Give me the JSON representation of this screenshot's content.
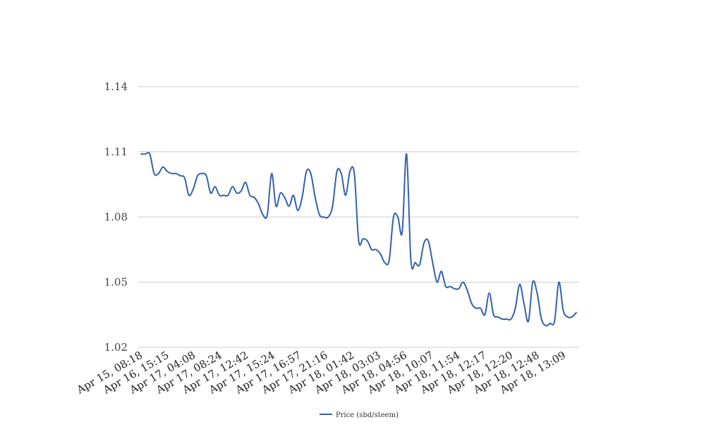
{
  "chart_data": {
    "type": "line",
    "title": "",
    "xlabel": "",
    "ylabel": "",
    "ylim": [
      1.02,
      1.14
    ],
    "yticks": [
      "1.02",
      "1.05",
      "1.08",
      "1.11",
      "1.14"
    ],
    "grid": true,
    "legend_position": "bottom-center",
    "x_tick_labels": [
      "Apr 15, 08:18",
      "Apr 16, 15:15",
      "Apr 17, 04:08",
      "Apr 17, 08:24",
      "Apr 17, 12:42",
      "Apr 17, 15:24",
      "Apr 17, 16:57",
      "Apr 17, 21:16",
      "Apr 18, 01:42",
      "Apr 18, 03:03",
      "Apr 18, 04:56",
      "Apr 18, 10:07",
      "Apr 18, 11:54",
      "Apr 18, 12:17",
      "Apr 18, 12:20",
      "Apr 18, 12:48",
      "Apr 18, 13:09"
    ],
    "series": [
      {
        "name": "Price (sbd/steem)",
        "color": "#3461ab",
        "values": [
          1.109,
          1.109,
          1.109,
          1.1,
          1.1,
          1.103,
          1.101,
          1.1,
          1.1,
          1.099,
          1.098,
          1.09,
          1.093,
          1.099,
          1.1,
          1.099,
          1.091,
          1.094,
          1.09,
          1.09,
          1.09,
          1.094,
          1.091,
          1.092,
          1.096,
          1.09,
          1.089,
          1.086,
          1.081,
          1.081,
          1.1,
          1.085,
          1.091,
          1.089,
          1.085,
          1.09,
          1.083,
          1.089,
          1.101,
          1.1,
          1.089,
          1.081,
          1.08,
          1.08,
          1.085,
          1.101,
          1.1,
          1.09,
          1.101,
          1.1,
          1.069,
          1.07,
          1.069,
          1.065,
          1.065,
          1.063,
          1.059,
          1.06,
          1.08,
          1.08,
          1.073,
          1.109,
          1.06,
          1.059,
          1.058,
          1.068,
          1.069,
          1.059,
          1.05,
          1.055,
          1.048,
          1.048,
          1.047,
          1.047,
          1.05,
          1.046,
          1.04,
          1.038,
          1.038,
          1.035,
          1.045,
          1.035,
          1.034,
          1.033,
          1.033,
          1.033,
          1.038,
          1.049,
          1.04,
          1.032,
          1.05,
          1.045,
          1.033,
          1.03,
          1.031,
          1.032,
          1.05,
          1.037,
          1.034,
          1.034,
          1.036
        ]
      }
    ]
  }
}
